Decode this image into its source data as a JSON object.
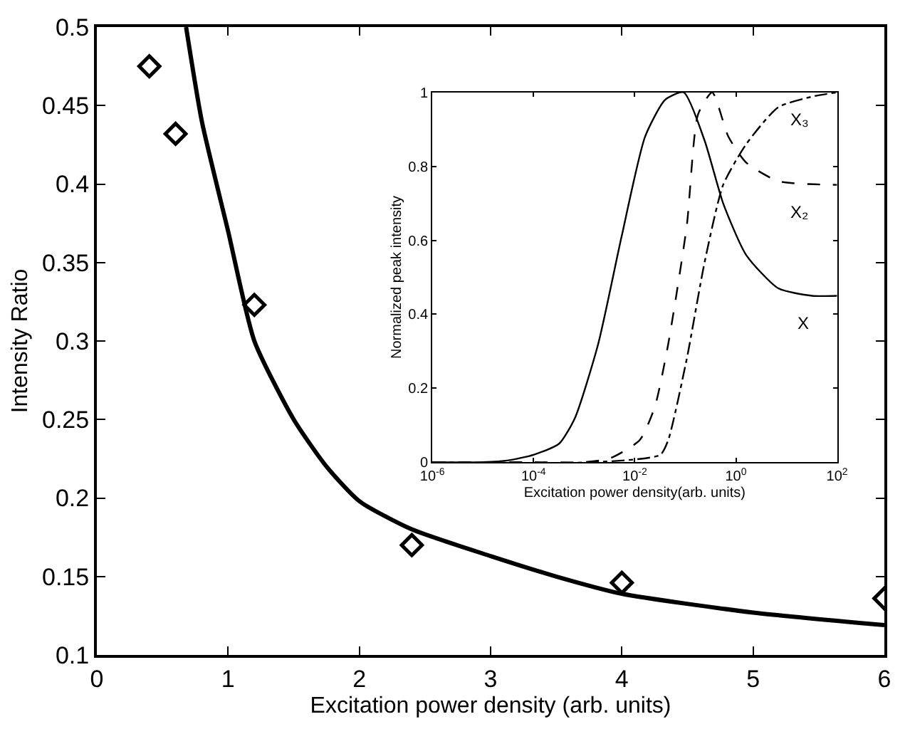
{
  "chart_data": [
    {
      "type": "scatter",
      "xlabel": "Excitation power density (arb. units)",
      "ylabel": "Intensity Ratio",
      "xlim": [
        0,
        6
      ],
      "xticks": [
        0,
        1,
        2,
        3,
        4,
        5,
        6
      ],
      "ylim": [
        0.1,
        0.5
      ],
      "yticks": [
        0.1,
        0.15,
        0.2,
        0.25,
        0.3,
        0.35,
        0.4,
        0.45,
        0.5
      ],
      "series": [
        {
          "type": "scatter",
          "marker": "diamond",
          "color": "#000000",
          "x": [
            0.4,
            0.6,
            1.2,
            2.4,
            4,
            6
          ],
          "values": [
            0.475,
            0.432,
            0.323,
            0.17,
            0.146,
            0.136
          ]
        },
        {
          "type": "line",
          "marker": "none",
          "line_style": "solid",
          "color": "#000000",
          "x": [
            0.68,
            0.8,
            1.0,
            1.2,
            1.5,
            1.75,
            2,
            2.4,
            3,
            3.5,
            4,
            5,
            6
          ],
          "values": [
            0.5,
            0.44,
            0.37,
            0.3,
            0.25,
            0.22,
            0.198,
            0.18,
            0.163,
            0.15,
            0.139,
            0.127,
            0.119
          ]
        }
      ]
    },
    {
      "type": "line",
      "xlabel": "Excitation power density(arb. units)",
      "ylabel": "Normalized peak intensity",
      "log": "x",
      "xlim": [
        1e-06,
        100
      ],
      "xticks": [
        {
          "value": 1e-06,
          "label": "10$^{-6}$"
        },
        {
          "value": 0.0001,
          "label": "10$^{-4}$"
        },
        {
          "value": 0.01,
          "label": "10$^{-2}$"
        },
        {
          "value": 1,
          "label": "10$^{0}$"
        },
        {
          "value": 100,
          "label": "10$^{2}$"
        }
      ],
      "ylim": [
        0,
        1
      ],
      "yticks": [
        0,
        0.2,
        0.4,
        0.6,
        0.8,
        1
      ],
      "marker": "none",
      "series": [
        {
          "name": "X",
          "color": "#000000",
          "line_style": "solid",
          "x": [
            1e-06,
            1e-05,
            3.2e-05,
            0.0001,
            0.00032,
            0.00066,
            0.0019,
            0.0055,
            0.016,
            0.04,
            0.093,
            0.24,
            0.56,
            1.6,
            6.9,
            32,
            100
          ],
          "values": [
            0,
            0,
            0.005,
            0.02,
            0.05,
            0.12,
            0.32,
            0.61,
            0.88,
            0.98,
            1.0,
            0.87,
            0.7,
            0.56,
            0.47,
            0.45,
            0.45
          ]
        },
        {
          "name": "X₂",
          "color": "#000000",
          "line_style": "dashed",
          "x": [
            1e-06,
            0.0001,
            0.001,
            0.0032,
            0.0126,
            0.025,
            0.046,
            0.107,
            0.178,
            0.34,
            0.71,
            1.6,
            6.9,
            100
          ],
          "values": [
            0,
            0,
            0,
            0.01,
            0.06,
            0.15,
            0.32,
            0.64,
            0.94,
            1.0,
            0.88,
            0.81,
            0.76,
            0.75
          ]
        },
        {
          "name": "X₃",
          "color": "#000000",
          "line_style": "dashdot",
          "x": [
            1e-06,
            0.0016,
            0.032,
            0.046,
            0.107,
            0.24,
            0.56,
            1.6,
            6.9,
            36,
            100
          ],
          "values": [
            0,
            0,
            0.02,
            0.06,
            0.28,
            0.54,
            0.75,
            0.86,
            0.96,
            0.99,
            1.0
          ]
        }
      ]
    }
  ]
}
